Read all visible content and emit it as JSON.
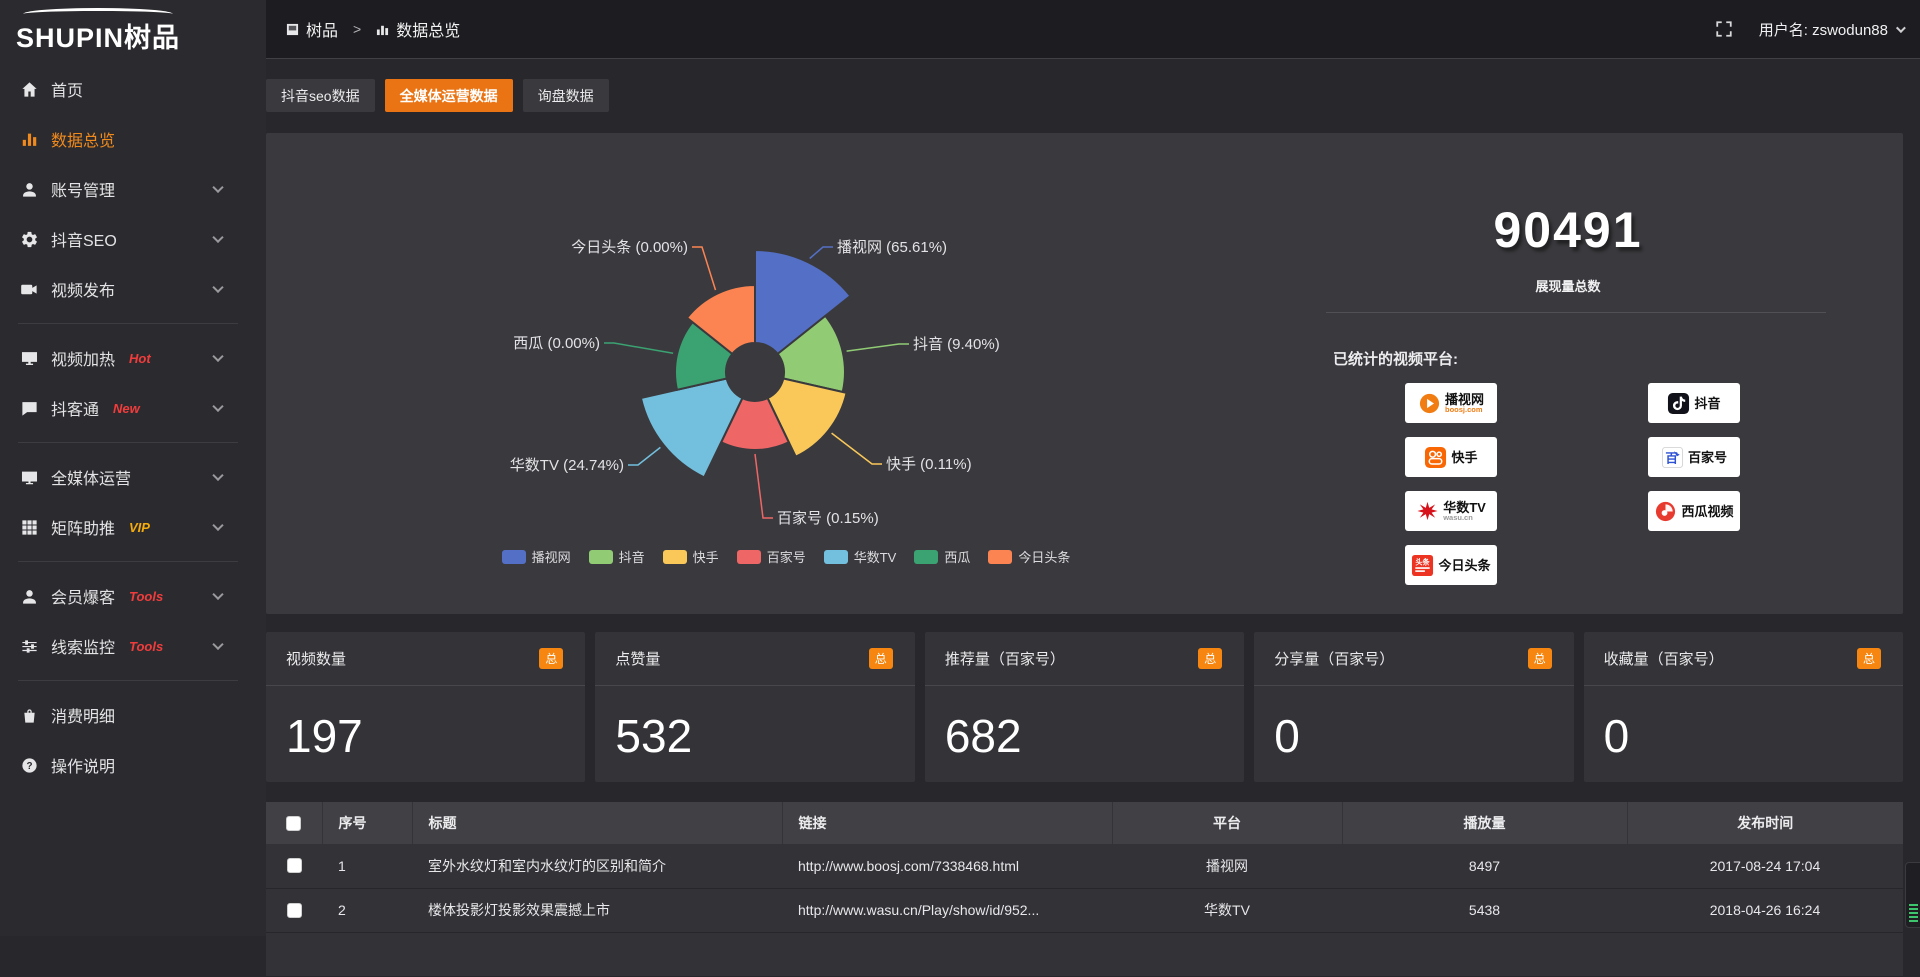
{
  "brand": {
    "logo_text": "SHUPIN树品"
  },
  "topbar": {
    "breadcrumb": [
      "树品",
      "数据总览"
    ],
    "breadcrumb_separator": ">",
    "username": "用户名: zswodun88"
  },
  "sidebar": {
    "items": [
      {
        "label": "首页",
        "icon": "home-icon"
      },
      {
        "label": "数据总览",
        "icon": "bar-chart-icon",
        "active": true
      },
      {
        "label": "账号管理",
        "icon": "user-icon",
        "expandable": true
      },
      {
        "label": "抖音SEO",
        "icon": "gear-icon",
        "expandable": true
      },
      {
        "label": "视频发布",
        "icon": "video-icon",
        "expandable": true
      },
      {
        "divider": true
      },
      {
        "label": "视频加热",
        "icon": "display-icon",
        "badge": "Hot",
        "badge_color": "#f23c3c",
        "expandable": true
      },
      {
        "label": "抖客通",
        "icon": "chat-icon",
        "badge": "New",
        "badge_color": "#f23c3c",
        "expandable": true
      },
      {
        "divider": true
      },
      {
        "label": "全媒体运营",
        "icon": "monitor-icon",
        "expandable": true
      },
      {
        "label": "矩阵助推",
        "icon": "grid-icon",
        "badge": "VIP",
        "badge_color": "#f5ac0c",
        "expandable": true
      },
      {
        "divider": true
      },
      {
        "label": "会员爆客",
        "icon": "member-icon",
        "badge": "Tools",
        "badge_color": "#f23c3c",
        "expandable": true
      },
      {
        "label": "线索监控",
        "icon": "sliders-icon",
        "badge": "Tools",
        "badge_color": "#f23c3c",
        "expandable": true
      },
      {
        "divider": true
      },
      {
        "label": "消费明细",
        "icon": "expense-icon"
      },
      {
        "label": "操作说明",
        "icon": "help-icon"
      }
    ]
  },
  "tabs": [
    {
      "label": "抖音seo数据",
      "active": false
    },
    {
      "label": "全媒体运营数据",
      "active": true
    },
    {
      "label": "询盘数据",
      "active": false
    }
  ],
  "chart_data": {
    "type": "pie",
    "style": "nightingale-rose-donut",
    "categories": [
      "播视网",
      "抖音",
      "快手",
      "百家号",
      "华数TV",
      "西瓜",
      "今日头条"
    ],
    "percents": [
      65.61,
      9.4,
      0.11,
      0.15,
      24.74,
      0.0,
      0.0
    ],
    "colors": [
      "#5470c6",
      "#91cc75",
      "#fac858",
      "#ee6666",
      "#73c0de",
      "#3ba272",
      "#fc8452"
    ],
    "label_format": "{name} ({percent}%)",
    "legend": [
      "播视网",
      "抖音",
      "快手",
      "百家号",
      "华数TV",
      "西瓜",
      "今日头条"
    ],
    "legend_position": "bottom",
    "title": ""
  },
  "summary": {
    "total_value": "90491",
    "total_label": "展现量总数",
    "platforms_label": "已统计的视频平台:",
    "platforms": [
      {
        "name": "播视网",
        "sub": "boosj.com",
        "icon": "boosj-logo",
        "sub_color": "#f07c12"
      },
      {
        "name": "抖音",
        "sub": "",
        "icon": "douyin-logo"
      },
      {
        "name": "快手",
        "sub": "",
        "icon": "kuaishou-logo"
      },
      {
        "name": "百家号",
        "sub": "",
        "icon": "baijiahao-logo"
      },
      {
        "name": "华数TV",
        "sub": "wasu.cn",
        "icon": "wasu-logo",
        "sub_color": "#9a9a9a"
      },
      {
        "name": "西瓜视频",
        "sub": "",
        "icon": "xigua-logo"
      },
      {
        "name": "今日头条",
        "sub": "",
        "icon": "toutiao-logo"
      }
    ]
  },
  "stat_cards": [
    {
      "label": "视频数量",
      "badge": "总",
      "value": "197"
    },
    {
      "label": "点赞量",
      "badge": "总",
      "value": "532"
    },
    {
      "label": "推荐量（百家号）",
      "badge": "总",
      "value": "682"
    },
    {
      "label": "分享量（百家号）",
      "badge": "总",
      "value": "0"
    },
    {
      "label": "收藏量（百家号）",
      "badge": "总",
      "value": "0"
    }
  ],
  "table": {
    "columns": [
      "序号",
      "标题",
      "链接",
      "平台",
      "播放量",
      "发布时间"
    ],
    "rows": [
      {
        "no": "1",
        "title": "室外水纹灯和室内水纹灯的区别和简介",
        "link": "http://www.boosj.com/7338468.html",
        "platform": "播视网",
        "plays": "8497",
        "time": "2017-08-24 17:04"
      },
      {
        "no": "2",
        "title": "楼体投影灯投影效果震撼上市",
        "link": "http://www.wasu.cn/Play/show/id/952...",
        "platform": "华数TV",
        "plays": "5438",
        "time": "2018-04-26 16:24"
      }
    ]
  }
}
